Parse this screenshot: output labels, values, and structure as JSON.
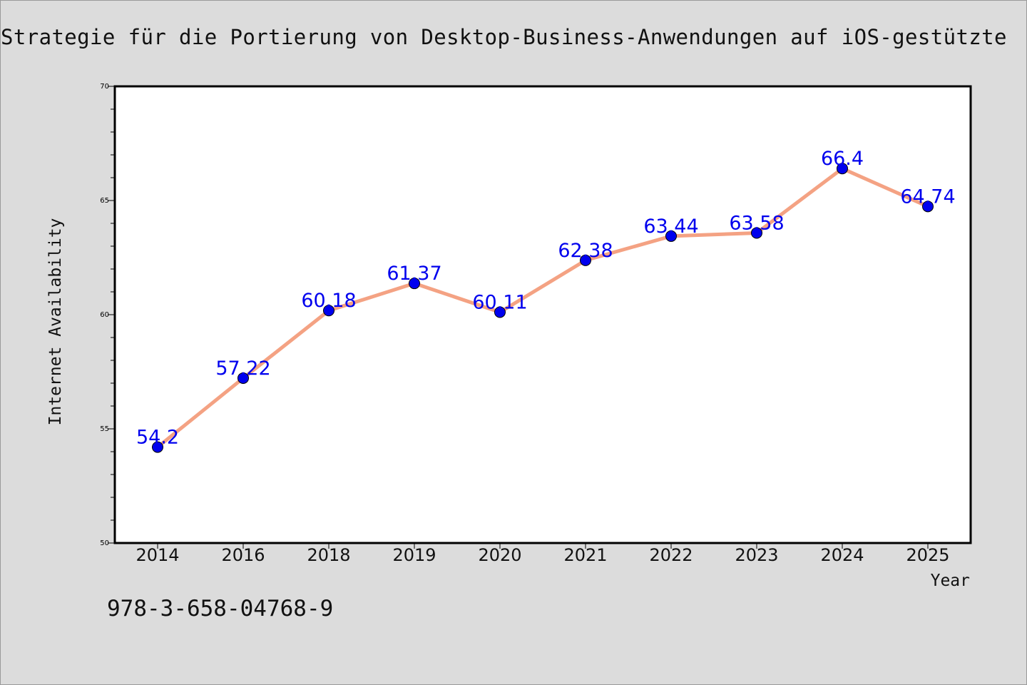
{
  "chart_data": {
    "type": "line",
    "title": "Strategie für die Portierung von Desktop-Business-Anwendungen auf iOS-gestützte",
    "xlabel": "Year",
    "ylabel": "Internet Availability",
    "categories": [
      "2014",
      "2016",
      "2018",
      "2019",
      "2020",
      "2021",
      "2022",
      "2023",
      "2024",
      "2025"
    ],
    "values": [
      54.2,
      57.22,
      60.18,
      61.37,
      60.11,
      62.38,
      63.44,
      63.58,
      66.4,
      64.74
    ],
    "data_labels": [
      "54.2",
      "57.22",
      "60.18",
      "61.37",
      "60.11",
      "62.38",
      "63.44",
      "63.58",
      "66.4",
      "64.74"
    ],
    "ylim": [
      50,
      70
    ],
    "yticks": [
      "50",
      "55",
      "60",
      "65",
      "70"
    ],
    "grid": false,
    "legend": "none",
    "colors": {
      "line": "#f4a283",
      "marker": "#0000ee",
      "label": "#0000ee"
    }
  },
  "annotation": {
    "text": "978-3-658-04768-9"
  }
}
